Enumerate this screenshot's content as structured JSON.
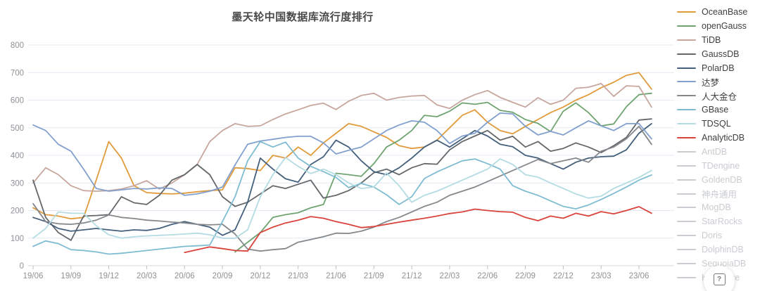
{
  "page": {
    "background": "#ffffff"
  },
  "chart_data": {
    "type": "line",
    "title": "墨天轮中国数据库流行度排行",
    "xlabel": "",
    "ylabel": "",
    "ylim": [
      0,
      800
    ],
    "y_ticks": [
      0,
      100,
      200,
      300,
      400,
      500,
      600,
      700,
      800
    ],
    "grid": true,
    "legend_position": "right",
    "x_tick_labels": [
      "19/06",
      "19/09",
      "19/12",
      "20/03",
      "20/06",
      "20/09",
      "20/12",
      "21/03",
      "21/06",
      "21/09",
      "21/12",
      "22/03",
      "22/06",
      "22/09",
      "22/12",
      "23/03",
      "23/06"
    ],
    "months": [
      "19/06",
      "19/07",
      "19/08",
      "19/09",
      "19/10",
      "19/11",
      "19/12",
      "20/01",
      "20/02",
      "20/03",
      "20/04",
      "20/05",
      "20/06",
      "20/07",
      "20/08",
      "20/09",
      "20/10",
      "20/11",
      "20/12",
      "21/01",
      "21/02",
      "21/03",
      "21/04",
      "21/05",
      "21/06",
      "21/07",
      "21/08",
      "21/09",
      "21/10",
      "21/11",
      "21/12",
      "22/01",
      "22/02",
      "22/03",
      "22/04",
      "22/05",
      "22/06",
      "22/07",
      "22/08",
      "22/09",
      "22/10",
      "22/11",
      "22/12",
      "23/01",
      "23/02",
      "23/03",
      "23/04",
      "23/05",
      "23/06",
      "23/07"
    ],
    "series": [
      {
        "name": "OceanBase",
        "color": "#E19B3C",
        "values": [
          210,
          185,
          180,
          170,
          175,
          310,
          450,
          390,
          290,
          265,
          262,
          260,
          263,
          268,
          272,
          275,
          355,
          352,
          345,
          400,
          390,
          430,
          400,
          445,
          480,
          515,
          505,
          485,
          465,
          435,
          425,
          430,
          455,
          500,
          545,
          565,
          520,
          490,
          478,
          505,
          530,
          555,
          575,
          600,
          620,
          645,
          665,
          690,
          700,
          640
        ]
      },
      {
        "name": "openGauss",
        "color": "#6FA470",
        "values": [
          null,
          null,
          null,
          null,
          null,
          null,
          null,
          null,
          null,
          null,
          null,
          null,
          null,
          null,
          null,
          null,
          50,
          85,
          120,
          175,
          185,
          192,
          210,
          222,
          335,
          330,
          324,
          370,
          430,
          455,
          490,
          545,
          540,
          560,
          590,
          585,
          592,
          563,
          556,
          530,
          516,
          486,
          560,
          590,
          555,
          507,
          514,
          576,
          620,
          625
        ]
      },
      {
        "name": "TiDB",
        "color": "#C7A69E",
        "values": [
          300,
          355,
          330,
          290,
          272,
          270,
          272,
          278,
          290,
          308,
          278,
          300,
          330,
          367,
          450,
          490,
          515,
          505,
          507,
          530,
          550,
          565,
          581,
          589,
          566,
          596,
          617,
          625,
          600,
          610,
          615,
          617,
          583,
          570,
          600,
          620,
          635,
          610,
          592,
          575,
          609,
          585,
          600,
          643,
          647,
          660,
          614,
          652,
          650,
          575
        ]
      },
      {
        "name": "GaussDB",
        "color": "#64686B",
        "values": [
          310,
          175,
          120,
          92,
          180,
          182,
          185,
          250,
          228,
          222,
          255,
          310,
          330,
          367,
          330,
          250,
          215,
          230,
          260,
          290,
          280,
          295,
          310,
          245,
          255,
          272,
          300,
          337,
          350,
          330,
          355,
          370,
          368,
          420,
          450,
          470,
          490,
          455,
          469,
          430,
          450,
          415,
          425,
          445,
          430,
          410,
          435,
          465,
          528,
          532
        ]
      },
      {
        "name": "PolarDB",
        "color": "#44607C",
        "values": [
          175,
          160,
          135,
          125,
          130,
          135,
          130,
          125,
          130,
          128,
          135,
          150,
          160,
          150,
          140,
          110,
          130,
          230,
          390,
          350,
          315,
          303,
          367,
          395,
          455,
          430,
          380,
          341,
          330,
          355,
          390,
          430,
          455,
          430,
          460,
          490,
          470,
          440,
          431,
          400,
          390,
          370,
          350,
          375,
          390,
          395,
          397,
          420,
          480,
          515
        ]
      },
      {
        "name": "达梦",
        "color": "#82A0CE",
        "values": [
          510,
          490,
          440,
          415,
          350,
          280,
          270,
          275,
          280,
          278,
          282,
          280,
          255,
          260,
          270,
          285,
          365,
          440,
          452,
          458,
          465,
          469,
          469,
          445,
          405,
          418,
          430,
          460,
          490,
          510,
          525,
          520,
          490,
          443,
          470,
          480,
          520,
          553,
          550,
          505,
          474,
          487,
          474,
          500,
          525,
          507,
          490,
          515,
          515,
          460
        ]
      },
      {
        "name": "人大金仓",
        "color": "#85888C",
        "values": [
          225,
          160,
          152,
          150,
          155,
          165,
          184,
          175,
          171,
          165,
          162,
          158,
          155,
          150,
          148,
          150,
          115,
          60,
          53,
          58,
          62,
          85,
          95,
          105,
          118,
          117,
          125,
          140,
          160,
          175,
          195,
          215,
          230,
          255,
          270,
          285,
          305,
          325,
          345,
          365,
          385,
          370,
          380,
          390,
          375,
          415,
          430,
          460,
          505,
          440
        ]
      },
      {
        "name": "GBase",
        "color": "#7FBCD2",
        "values": [
          70,
          90,
          80,
          58,
          55,
          50,
          42,
          45,
          50,
          55,
          60,
          65,
          70,
          72,
          75,
          160,
          250,
          380,
          450,
          430,
          448,
          390,
          360,
          341,
          320,
          283,
          298,
          285,
          257,
          222,
          250,
          316,
          340,
          360,
          380,
          387,
          370,
          350,
          290,
          270,
          255,
          235,
          215,
          206,
          220,
          240,
          262,
          285,
          310,
          329
        ]
      },
      {
        "name": "TDSQL",
        "color": "#B4DCE2",
        "values": [
          100,
          135,
          195,
          190,
          190,
          145,
          112,
          100,
          105,
          108,
          110,
          112,
          115,
          118,
          112,
          100,
          99,
          130,
          250,
          330,
          392,
          360,
          334,
          350,
          330,
          300,
          280,
          285,
          336,
          290,
          230,
          255,
          270,
          290,
          310,
          330,
          350,
          387,
          367,
          330,
          321,
          300,
          280,
          260,
          245,
          252,
          280,
          300,
          320,
          345
        ]
      },
      {
        "name": "AnalyticDB",
        "color": "#D9433B",
        "values": [
          null,
          null,
          null,
          null,
          null,
          null,
          null,
          null,
          null,
          null,
          null,
          null,
          48,
          58,
          68,
          62,
          55,
          53,
          120,
          140,
          155,
          165,
          178,
          172,
          160,
          150,
          138,
          142,
          150,
          158,
          165,
          172,
          180,
          189,
          195,
          205,
          200,
          196,
          194,
          175,
          163,
          180,
          172,
          190,
          180,
          196,
          188,
          200,
          214,
          190
        ]
      }
    ],
    "disabled_series": [
      "AntDB",
      "TDengine",
      "GoldenDB",
      "神舟通用",
      "MogDB",
      "StarRocks",
      "Doris",
      "DolphinDB",
      "SequoiaDB",
      "Kyligence"
    ]
  },
  "style_tokens": {
    "grid_color": "#E3EAF4",
    "axis_line_color": "#D8D8D8",
    "tick_color": "#BFBFBF",
    "axis_label_color": "#8E9196",
    "disabled_legend_color": "#C9CCD1",
    "title_color": "#4A4A4A"
  },
  "help_button": {
    "glyph": "?"
  }
}
